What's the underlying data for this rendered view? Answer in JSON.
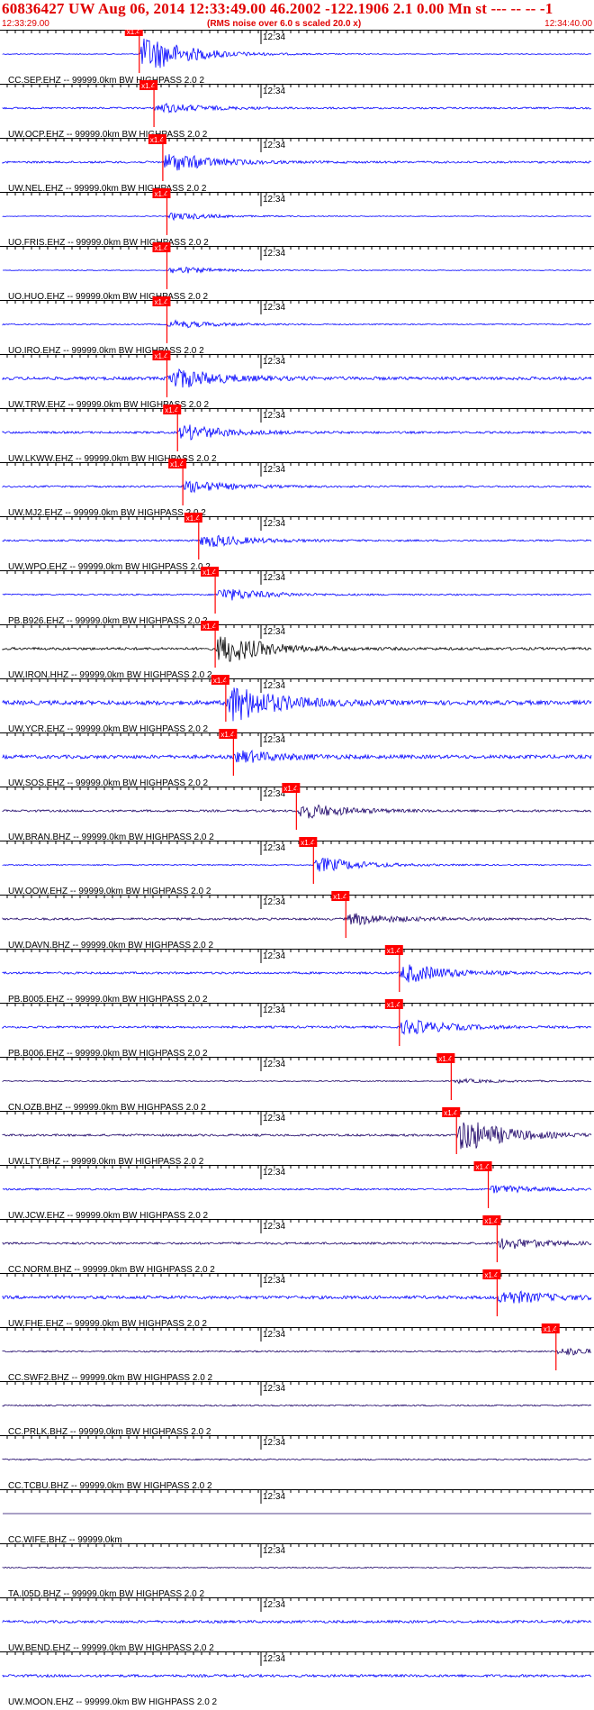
{
  "header": {
    "title": "60836427 UW Aug 06, 2014 12:33:49.00   46.2002 -122.1906  2.1 0.00 Mn st --- -- --   -1",
    "start_time": "12:33:29.00",
    "noise_note": "(RMS noise over 6.0 s scaled 20.0 x)",
    "end_time": "12:34:40.00"
  },
  "time_mark_label": "12:34",
  "pick_label": "x1.4",
  "colors": {
    "header_text": "#e00000",
    "trace_blue": "#0000ff",
    "trace_navy": "#1a0066",
    "trace_black": "#000000",
    "pick": "#ff0000"
  },
  "traces": [
    {
      "label": "CC.SEP.EHZ -- 99999.0km BW  HIGHPASS  2.0  2",
      "color": "blue",
      "pick": 0.232,
      "event_amp": 1.0,
      "noise": 0.06
    },
    {
      "label": "UW.OCP.EHZ -- 99999.0km BW  HIGHPASS  2.0  2",
      "color": "blue",
      "pick": 0.257,
      "event_amp": 0.25,
      "noise": 0.12
    },
    {
      "label": "UW.NEL.EHZ -- 99999.0km BW  HIGHPASS  2.0  2",
      "color": "blue",
      "pick": 0.272,
      "event_amp": 0.5,
      "noise": 0.14
    },
    {
      "label": "UO.FRIS.EHZ -- 99999.0km BW  HIGHPASS  2.0  2",
      "color": "blue",
      "pick": 0.279,
      "event_amp": 0.2,
      "noise": 0.05
    },
    {
      "label": "UO.HUO.EHZ -- 99999.0km BW  HIGHPASS  2.0  2",
      "color": "blue",
      "pick": 0.279,
      "event_amp": 0.2,
      "noise": 0.05
    },
    {
      "label": "UO.IRO.EHZ -- 99999.0km BW  HIGHPASS  2.0  2",
      "color": "blue",
      "pick": 0.279,
      "event_amp": 0.2,
      "noise": 0.08
    },
    {
      "label": "UW.TRW.EHZ -- 99999.0km BW  HIGHPASS  2.0  2",
      "color": "blue",
      "pick": 0.279,
      "event_amp": 0.55,
      "noise": 0.22
    },
    {
      "label": "UW.LKWW.EHZ -- 99999.0km BW  HIGHPASS  2.0  2",
      "color": "blue",
      "pick": 0.297,
      "event_amp": 0.4,
      "noise": 0.15
    },
    {
      "label": "UW.MJ2.EHZ -- 99999.0km BW  HIGHPASS  2.0  2",
      "color": "blue",
      "pick": 0.306,
      "event_amp": 0.3,
      "noise": 0.12
    },
    {
      "label": "UW.WPO.EHZ -- 99999.0km BW  HIGHPASS  2.0  2",
      "color": "blue",
      "pick": 0.333,
      "event_amp": 0.35,
      "noise": 0.12
    },
    {
      "label": "PB.B926.EHZ -- 99999.0km BW  HIGHPASS  2.0  2",
      "color": "blue",
      "pick": 0.361,
      "event_amp": 0.35,
      "noise": 0.1
    },
    {
      "label": "UW.IRON.HHZ -- 99999.0km BW  HIGHPASS  2.0  2",
      "color": "black",
      "pick": 0.361,
      "event_amp": 0.8,
      "noise": 0.18
    },
    {
      "label": "UW.YCR.EHZ -- 99999.0km BW  HIGHPASS  2.0  2",
      "color": "blue",
      "pick": 0.379,
      "event_amp": 1.0,
      "noise": 0.3
    },
    {
      "label": "UW.SOS.EHZ -- 99999.0km BW  HIGHPASS  2.0  2",
      "color": "blue",
      "pick": 0.392,
      "event_amp": 0.3,
      "noise": 0.25
    },
    {
      "label": "UW.BRAN.BHZ -- 99999.0km BW  HIGHPASS  2.0  2",
      "color": "navy",
      "pick": 0.499,
      "event_amp": 0.4,
      "noise": 0.15
    },
    {
      "label": "UW.OOW.EHZ -- 99999.0km BW  HIGHPASS  2.0  2",
      "color": "blue",
      "pick": 0.528,
      "event_amp": 0.4,
      "noise": 0.08
    },
    {
      "label": "UW.DAVN.BHZ -- 99999.0km BW  HIGHPASS  2.0  2",
      "color": "navy",
      "pick": 0.583,
      "event_amp": 0.3,
      "noise": 0.15
    },
    {
      "label": "PB.B005.EHZ -- 99999.0km BW  HIGHPASS  2.0  2",
      "color": "blue",
      "pick": 0.674,
      "event_amp": 0.5,
      "noise": 0.15
    },
    {
      "label": "PB.B006.EHZ -- 99999.0km BW  HIGHPASS  2.0  2",
      "color": "blue",
      "pick": 0.674,
      "event_amp": 0.4,
      "noise": 0.15
    },
    {
      "label": "CN.OZB.BHZ -- 99999.0km BW  HIGHPASS  2.0  2",
      "color": "navy",
      "pick": 0.762,
      "event_amp": 0.1,
      "noise": 0.08
    },
    {
      "label": "UW.LTY.BHZ -- 99999.0km BW  HIGHPASS  2.0  2",
      "color": "navy",
      "pick": 0.771,
      "event_amp": 0.9,
      "noise": 0.15
    },
    {
      "label": "UW.JCW.EHZ -- 99999.0km BW  HIGHPASS  2.0  2",
      "color": "blue",
      "pick": 0.825,
      "event_amp": 0.2,
      "noise": 0.12
    },
    {
      "label": "CC.NORM.BHZ -- 99999.0km BW  HIGHPASS  2.0  2",
      "color": "navy",
      "pick": 0.84,
      "event_amp": 0.3,
      "noise": 0.15
    },
    {
      "label": "UW.FHE.EHZ -- 99999.0km BW  HIGHPASS  2.0  2",
      "color": "blue",
      "pick": 0.84,
      "event_amp": 0.35,
      "noise": 0.22
    },
    {
      "label": "CC.SWF2.BHZ -- 99999.0km BW  HIGHPASS  2.0  2",
      "color": "navy",
      "pick": 0.94,
      "event_amp": 0.2,
      "noise": 0.1
    },
    {
      "label": "CC.PRLK.BHZ -- 99999.0km BW  HIGHPASS  2.0  2",
      "color": "navy",
      "pick": null,
      "event_amp": 0,
      "noise": 0.1
    },
    {
      "label": "CC.TCBU.BHZ -- 99999.0km BW  HIGHPASS  2.0  2",
      "color": "navy",
      "pick": null,
      "event_amp": 0,
      "noise": 0.1
    },
    {
      "label": "CC.WIFE.BHZ -- 99999.0km",
      "color": "navy",
      "pick": null,
      "event_amp": 0,
      "noise": 0.0
    },
    {
      "label": "TA.I05D.BHZ -- 99999.0km BW  HIGHPASS  2.0  2",
      "color": "navy",
      "pick": null,
      "event_amp": 0,
      "noise": 0.08
    },
    {
      "label": "UW.BEND.EHZ -- 99999.0km BW  HIGHPASS  2.0  2",
      "color": "blue",
      "pick": null,
      "event_amp": 0,
      "noise": 0.18
    },
    {
      "label": "UW.MOON.EHZ -- 99999.0km BW  HIGHPASS  2.0  2",
      "color": "blue",
      "pick": null,
      "event_amp": 0,
      "noise": 0.18
    }
  ]
}
